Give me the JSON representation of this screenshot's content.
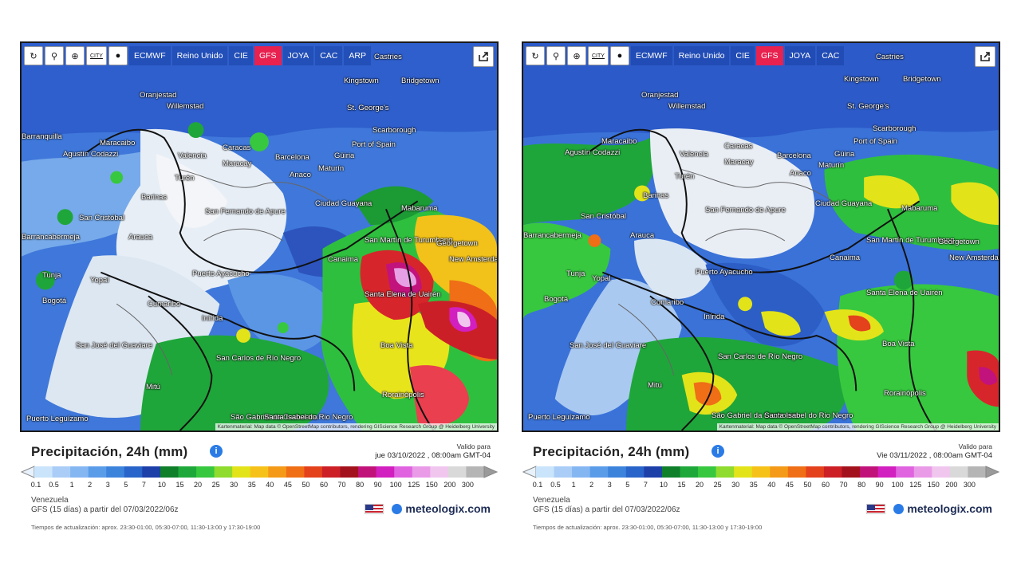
{
  "toolbar": {
    "icons": [
      "refresh-icon",
      "location-pin-icon",
      "zoom-icon",
      "city-toggle-icon",
      "pin-icon"
    ],
    "city_label": "CITY",
    "share_icon": "share-icon"
  },
  "panels": [
    {
      "models": [
        "ECMWF",
        "Reino Unido",
        "CIE",
        "GFS",
        "JOYA",
        "CAC",
        "ARP"
      ],
      "active_model": "GFS",
      "title": "Precipitación, 24h (mm)",
      "valid_label": "Valido para",
      "valid_date": "jue 03/10/2022 , 08:00am GMT-04",
      "region": "Venezuela",
      "model_run": "GFS (15 días) a partir del 07/03/2022/06z",
      "brand": "meteologix.com",
      "update_times": "Tiempos de actualización: aprox. 23:30-01:00, 05:30-07:00, 11:30-13:00 y 17:30-19:00",
      "attribution": "Kartenmaterial: Map data © OpenStreetMap contributors, rendering GIScience Research Group @ Heidelberg University"
    },
    {
      "models": [
        "ECMWF",
        "Reino Unido",
        "CIE",
        "GFS",
        "JOYA",
        "CAC"
      ],
      "active_model": "GFS",
      "title": "Precipitación, 24h (mm)",
      "valid_label": "Valido para",
      "valid_date": "Vie 03/11/2022 , 08:00am GMT-04",
      "region": "Venezuela",
      "model_run": "GFS (15 días) a partir del 07/03/2022/06z",
      "brand": "meteologix.com",
      "update_times": "Tiempos de actualización: aprox. 23:30-01:00, 05:30-07:00, 11:30-13:00 y 17:30-19:00",
      "attribution": "Kartenmaterial: Map data © OpenStreetMap contributors, rendering GIScience Research Group @ Heidelberg University"
    }
  ],
  "scale": {
    "labels": [
      "0.1",
      "0.5",
      "1",
      "2",
      "3",
      "5",
      "7",
      "10",
      "15",
      "20",
      "25",
      "30",
      "35",
      "40",
      "45",
      "50",
      "60",
      "70",
      "80",
      "90",
      "100",
      "125",
      "150",
      "200",
      "300"
    ],
    "colors": [
      "#c9e4fb",
      "#a9cdf6",
      "#84b6f2",
      "#5b9ce9",
      "#3c83dc",
      "#2864c9",
      "#1c3fa8",
      "#0f7f2a",
      "#1ea83a",
      "#37c83f",
      "#8fdb2e",
      "#e3e31a",
      "#f6c219",
      "#f49a18",
      "#ef6e16",
      "#e4411d",
      "#cc1f26",
      "#a3121c",
      "#c1127a",
      "#d21fbf",
      "#e063e0",
      "#ea9be8",
      "#f0c6ee",
      "#d9d9d9",
      "#b5b5b5"
    ]
  },
  "cities_left": [
    "Castries",
    "Kingstown",
    "Bridgetown",
    "Oranjestad",
    "Willemstad",
    "St. George's",
    "Scarborough",
    "Port of Spain",
    "Barranquilla",
    "Maracaibo",
    "Agustín Codazzi",
    "Caracas",
    "Valencia",
    "Maracay",
    "Barcelona",
    "Güiria",
    "Maturín",
    "Anaco",
    "Barinas",
    "San Cristóbal",
    "San Fernando de Apure",
    "Ciudad Guayana",
    "Mabaruma",
    "Barrancabermeja",
    "Arauca",
    "San Martín de Turumbang",
    "Georgetown",
    "New Amsterdam",
    "Canaima",
    "Tunja",
    "Puerto Ayacucho",
    "Bogotá",
    "Santa Elena de Uairén",
    "Cumaribo",
    "Inírida",
    "Boa Vista",
    "San José del Guaviare",
    "San Carlos de Río Negro",
    "Mitú",
    "Rorainópolis",
    "Puerto Leguízamo",
    "São Gabriel da Cachoeira",
    "Santa Isabel do Rio Negro",
    "Turén",
    "Yopal"
  ],
  "cities_right": [
    "Castries",
    "Kingstown",
    "Bridgetown",
    "Oranjestad",
    "Willemstad",
    "St. George's",
    "Scarborough",
    "Port of Spain",
    "Maracaibo",
    "Agustín Codazzi",
    "Caracas",
    "Valencia",
    "Maracay",
    "Barcelona",
    "Güiria",
    "Maturín",
    "Anaco",
    "Turén",
    "Barinas",
    "San Cristóbal",
    "San Fernando de Apure",
    "Ciudad Guayana",
    "Mabaruma",
    "Barrancabermeja",
    "Arauca",
    "San Martín de Turumbang",
    "Georgetown",
    "New Amsterdam",
    "Canaima",
    "Tunja",
    "Puerto Ayacucho",
    "Bogotá",
    "Santa Elena de Uairén",
    "Cumaribo",
    "Inírida",
    "Boa Vista",
    "San José del Guaviare",
    "San Carlos de Río Negro",
    "Mitú",
    "Rorainópolis",
    "Puerto Leguízamo",
    "São Gabriel da Cachoeira",
    "Santa Isabel do Rio Negro",
    "Yopal"
  ]
}
